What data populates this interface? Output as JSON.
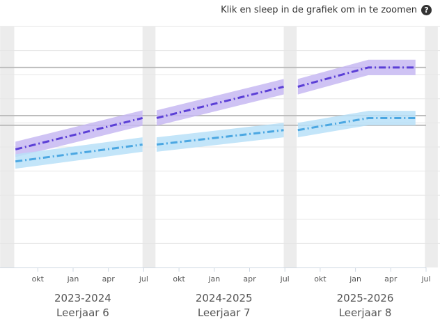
{
  "hint": {
    "text": "Klik en sleep in de grafiek om in te zoomen",
    "icon": "question-icon"
  },
  "colors": {
    "purple_line": "#5b3fd6",
    "purple_band": "#c7b8f2",
    "blue_line": "#4ba7e2",
    "blue_band": "#b9e1f8",
    "gap": "#ececec",
    "reference_line": "#bdbdbd",
    "grid": "#e6e6e6"
  },
  "chart_data": {
    "type": "line",
    "x_unit": "months since 1 Aug 2023",
    "ylim": [
      0,
      10
    ],
    "grid_lines_y": [
      1,
      2,
      3,
      4,
      5,
      6,
      7,
      8,
      9,
      10
    ],
    "reference_lines_y": [
      8.3,
      6.3,
      5.9
    ],
    "years": [
      {
        "range": "2023-2024",
        "grade": "Leerjaar 6",
        "start": 0,
        "end": 12,
        "ticks": [
          {
            "label": "okt",
            "x": 2
          },
          {
            "label": "jan",
            "x": 5
          },
          {
            "label": "apr",
            "x": 8
          },
          {
            "label": "jul",
            "x": 11
          }
        ]
      },
      {
        "range": "2024-2025",
        "grade": "Leerjaar 7",
        "start": 12,
        "end": 24,
        "ticks": [
          {
            "label": "okt",
            "x": 14
          },
          {
            "label": "jan",
            "x": 17
          },
          {
            "label": "apr",
            "x": 20
          },
          {
            "label": "jul",
            "x": 23
          }
        ]
      },
      {
        "range": "2025-2026",
        "grade": "Leerjaar 8",
        "start": 24,
        "end": 36,
        "ticks": [
          {
            "label": "okt",
            "x": 26
          },
          {
            "label": "jan",
            "x": 29
          },
          {
            "label": "apr",
            "x": 32
          },
          {
            "label": "jul",
            "x": 35
          }
        ]
      }
    ],
    "gaps": [
      [
        -1.2,
        0
      ],
      [
        10.9,
        12
      ],
      [
        22.9,
        24
      ],
      [
        34.9,
        36
      ]
    ],
    "series": [
      {
        "name": "purple",
        "segments": [
          [
            {
              "x": 0.1,
              "y": 4.9
            },
            {
              "x": 10.9,
              "y": 6.2
            }
          ],
          [
            {
              "x": 12.1,
              "y": 6.2
            },
            {
              "x": 22.9,
              "y": 7.5
            }
          ],
          [
            {
              "x": 24.1,
              "y": 7.5
            },
            {
              "x": 30.1,
              "y": 8.3
            },
            {
              "x": 34.1,
              "y": 8.3
            }
          ]
        ],
        "band": 0.32
      },
      {
        "name": "blue",
        "segments": [
          [
            {
              "x": 0.1,
              "y": 4.4
            },
            {
              "x": 10.9,
              "y": 5.1
            }
          ],
          [
            {
              "x": 12.1,
              "y": 5.1
            },
            {
              "x": 22.9,
              "y": 5.7
            }
          ],
          [
            {
              "x": 24.1,
              "y": 5.7
            },
            {
              "x": 30.1,
              "y": 6.2
            },
            {
              "x": 34.1,
              "y": 6.2
            }
          ]
        ],
        "band": 0.3
      }
    ]
  }
}
